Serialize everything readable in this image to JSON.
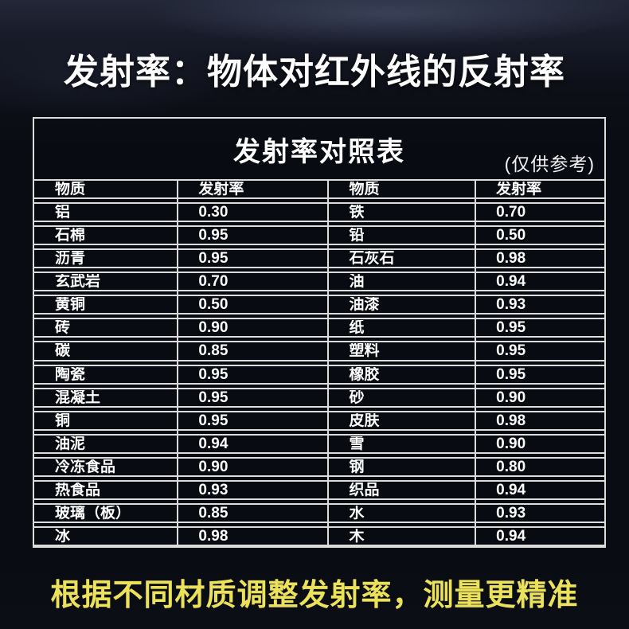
{
  "page": {
    "main_title": "发射率：物体对红外线的反射率",
    "footer_note": "根据不同材质调整发射率，测量更精准"
  },
  "chart_data": {
    "type": "table",
    "title": "发射率对照表",
    "subtitle": "(仅供参考)",
    "columns": [
      "物质",
      "发射率",
      "物质",
      "发射率"
    ],
    "rows": [
      [
        "铝",
        "0.30",
        "铁",
        "0.70"
      ],
      [
        "石棉",
        "0.95",
        "铅",
        "0.50"
      ],
      [
        "沥青",
        "0.95",
        "石灰石",
        "0.98"
      ],
      [
        "玄武岩",
        "0.70",
        "油",
        "0.94"
      ],
      [
        "黄铜",
        "0.50",
        "油漆",
        "0.93"
      ],
      [
        "砖",
        "0.90",
        "纸",
        "0.95"
      ],
      [
        "碳",
        "0.85",
        "塑料",
        "0.95"
      ],
      [
        "陶瓷",
        "0.95",
        "橡胶",
        "0.95"
      ],
      [
        "混凝土",
        "0.95",
        "砂",
        "0.90"
      ],
      [
        "铜",
        "0.95",
        "皮肤",
        "0.98"
      ],
      [
        "油泥",
        "0.94",
        "雪",
        "0.90"
      ],
      [
        "冷冻食品",
        "0.90",
        "钢",
        "0.80"
      ],
      [
        "热食品",
        "0.93",
        "织品",
        "0.94"
      ],
      [
        "玻璃（板）",
        "0.85",
        "水",
        "0.93"
      ],
      [
        "冰",
        "0.98",
        "木",
        "0.94"
      ]
    ],
    "layout": {
      "grid": "on",
      "column_widths_pct": [
        25.2,
        26.4,
        25.8,
        22.6
      ]
    }
  },
  "colors": {
    "background": "#0a0c13",
    "table_border": "#dcdcdc",
    "text": "#ffffff",
    "footer_accent": "#ece15b"
  }
}
